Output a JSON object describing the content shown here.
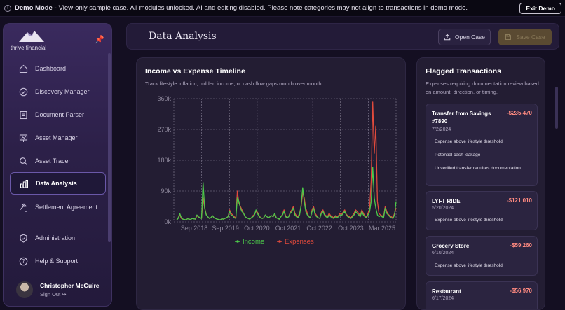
{
  "banner": {
    "label": "Demo Mode -",
    "text": "View-only sample case. All modules unlocked. AI and editing disabled. Please note categories may not align to transactions in demo mode.",
    "exit_label": "Exit Demo"
  },
  "sidebar": {
    "logo_text": "thrive financial",
    "items": [
      {
        "label": "Dashboard",
        "icon": "home-icon"
      },
      {
        "label": "Discovery Manager",
        "icon": "check-circle-icon"
      },
      {
        "label": "Document Parser",
        "icon": "document-icon"
      },
      {
        "label": "Asset Manager",
        "icon": "presentation-chart-icon"
      },
      {
        "label": "Asset Tracer",
        "icon": "search-icon"
      },
      {
        "label": "Data Analysis",
        "icon": "bar-chart-icon",
        "active": true
      },
      {
        "label": "Settlement Agreement",
        "icon": "gavel-icon"
      },
      {
        "label": "Administration",
        "icon": "shield-check-icon"
      },
      {
        "label": "Help & Support",
        "icon": "help-icon"
      }
    ],
    "user": {
      "name": "Christopher McGuire",
      "sign_out": "Sign Out"
    }
  },
  "header": {
    "title": "Data Analysis",
    "open_case": "Open Case",
    "save_case": "Save Case"
  },
  "chart_panel": {
    "title": "Income vs Expense Timeline",
    "subtitle": "Track lifestyle inflation, hidden income, or cash flow gaps month over month."
  },
  "chart_data": {
    "type": "line",
    "ylim": [
      0,
      360000
    ],
    "y_ticks": [
      "0k",
      "90k",
      "180k",
      "270k",
      "360k"
    ],
    "x_ticks": [
      "Sep 2018",
      "Sep 2019",
      "Oct 2020",
      "Oct 2021",
      "Oct 2022",
      "Oct 2023",
      "Mar 2025"
    ],
    "grid": true,
    "legend_position": "bottom",
    "series": [
      {
        "name": "Income",
        "color": "#4cc94a",
        "values": [
          5000,
          10000,
          25000,
          12000,
          8000,
          7000,
          6000,
          9000,
          8000,
          7000,
          10000,
          9000,
          8000,
          20000,
          15000,
          12000,
          10000,
          115000,
          40000,
          20000,
          15000,
          10000,
          12000,
          18000,
          12000,
          10000,
          8000,
          7000,
          6000,
          9000,
          8000,
          10000,
          12000,
          15000,
          30000,
          20000,
          18000,
          12000,
          10000,
          70000,
          60000,
          40000,
          30000,
          25000,
          15000,
          12000,
          10000,
          8000,
          12000,
          15000,
          20000,
          35000,
          25000,
          15000,
          12000,
          10000,
          12000,
          20000,
          15000,
          12000,
          15000,
          18000,
          15000,
          25000,
          12000,
          10000,
          8000,
          15000,
          20000,
          30000,
          15000,
          12000,
          15000,
          25000,
          30000,
          40000,
          20000,
          15000,
          12000,
          20000,
          50000,
          100000,
          60000,
          30000,
          20000,
          15000,
          12000,
          30000,
          40000,
          20000,
          15000,
          12000,
          10000,
          25000,
          30000,
          20000,
          15000,
          12000,
          20000,
          15000,
          12000,
          10000,
          15000,
          12000,
          15000,
          20000,
          18000,
          25000,
          30000,
          20000,
          15000,
          12000,
          10000,
          15000,
          20000,
          30000,
          25000,
          20000,
          15000,
          30000,
          20000,
          15000,
          12000,
          20000,
          30000,
          60000,
          160000,
          70000,
          40000,
          20000,
          15000,
          18000,
          15000,
          12000,
          40000,
          25000,
          20000,
          15000,
          12000,
          10000,
          20000,
          60000
        ]
      },
      {
        "name": "Expenses",
        "color": "#e04a3c",
        "values": [
          5000,
          12000,
          20000,
          10000,
          8000,
          7000,
          6000,
          9000,
          8000,
          7000,
          10000,
          9000,
          8000,
          18000,
          14000,
          12000,
          10000,
          70000,
          40000,
          22000,
          15000,
          10000,
          12000,
          18000,
          12000,
          10000,
          8000,
          7000,
          6000,
          9000,
          8000,
          10000,
          12000,
          15000,
          35000,
          25000,
          20000,
          15000,
          12000,
          90000,
          55000,
          45000,
          35000,
          25000,
          15000,
          12000,
          10000,
          8000,
          12000,
          18000,
          22000,
          30000,
          28000,
          18000,
          12000,
          10000,
          12000,
          20000,
          15000,
          12000,
          15000,
          18000,
          15000,
          22000,
          12000,
          10000,
          8000,
          15000,
          22000,
          35000,
          18000,
          12000,
          15000,
          28000,
          35000,
          45000,
          25000,
          18000,
          15000,
          25000,
          45000,
          85000,
          70000,
          40000,
          25000,
          15000,
          12000,
          35000,
          45000,
          25000,
          18000,
          12000,
          10000,
          28000,
          35000,
          22000,
          18000,
          15000,
          25000,
          18000,
          15000,
          12000,
          18000,
          15000,
          18000,
          25000,
          22000,
          28000,
          35000,
          22000,
          18000,
          15000,
          12000,
          18000,
          25000,
          35000,
          30000,
          25000,
          18000,
          35000,
          25000,
          18000,
          15000,
          25000,
          40000,
          120000,
          350000,
          200000,
          280000,
          60000,
          25000,
          20000,
          18000,
          15000,
          45000,
          30000,
          22000,
          18000,
          15000,
          12000,
          25000,
          40000
        ]
      }
    ]
  },
  "flag_panel": {
    "title": "Flagged Transactions",
    "subtitle": "Expenses requiring documentation review based on amount, direction, or timing.",
    "cards": [
      {
        "name": "Transfer from Savings #7890",
        "amount": "-$235,470",
        "date": "7/2/2024",
        "reasons": [
          "Expense above lifestyle threshold",
          "Potential cash leakage",
          "Unverified transfer requires documentation"
        ]
      },
      {
        "name": "LYFT RIDE",
        "amount": "-$121,010",
        "date": "5/20/2024",
        "reasons": [
          "Expense above lifestyle threshold"
        ]
      },
      {
        "name": "Grocery Store",
        "amount": "-$59,260",
        "date": "6/10/2024",
        "reasons": [
          "Expense above lifestyle threshold"
        ]
      },
      {
        "name": "Restaurant",
        "amount": "-$56,970",
        "date": "6/17/2024",
        "reasons": []
      }
    ]
  }
}
